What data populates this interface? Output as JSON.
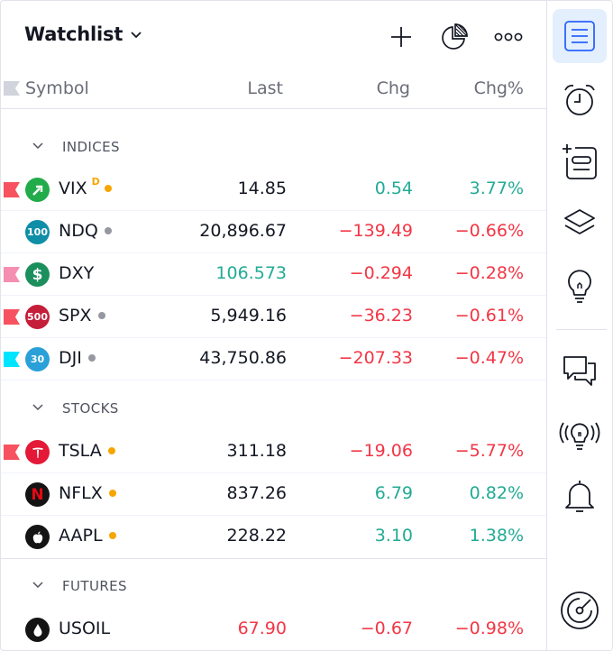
{
  "header": {
    "title": "Watchlist"
  },
  "columns": {
    "symbol": "Symbol",
    "last": "Last",
    "chg": "Chg",
    "chg_pct": "Chg%"
  },
  "sections": [
    {
      "label": "INDICES"
    },
    {
      "label": "STOCKS"
    },
    {
      "label": "FUTURES"
    }
  ],
  "rows": [
    {
      "symbol": "VIX",
      "superscript": "D",
      "last": "14.85",
      "chg": "0.54",
      "chg_pct": "3.77%",
      "last_color": "neutral",
      "chg_color": "positive",
      "flag_color": "#f7525f",
      "logo_text": "",
      "logo_color": "#22ab4a",
      "dot_color": "#f7a600"
    },
    {
      "symbol": "NDQ",
      "superscript": "",
      "last": "20,896.67",
      "chg": "−139.49",
      "chg_pct": "−0.66%",
      "last_color": "neutral",
      "chg_color": "negative",
      "flag_color": "",
      "logo_text": "100",
      "logo_color": "#0f8ea8",
      "dot_color": "#9598a1"
    },
    {
      "symbol": "DXY",
      "superscript": "",
      "last": "106.573",
      "chg": "−0.294",
      "chg_pct": "−0.28%",
      "last_color": "positive",
      "chg_color": "negative",
      "flag_color": "#f48fb1",
      "logo_text": "$",
      "logo_color": "#1b8f5c",
      "dot_color": ""
    },
    {
      "symbol": "SPX",
      "superscript": "",
      "last": "5,949.16",
      "chg": "−36.23",
      "chg_pct": "−0.61%",
      "last_color": "neutral",
      "chg_color": "negative",
      "flag_color": "#f7525f",
      "logo_text": "500",
      "logo_color": "#c41e3a",
      "dot_color": "#9598a1"
    },
    {
      "symbol": "DJI",
      "superscript": "",
      "last": "43,750.86",
      "chg": "−207.33",
      "chg_pct": "−0.47%",
      "last_color": "neutral",
      "chg_color": "negative",
      "flag_color": "#00e5ff",
      "logo_text": "30",
      "logo_color": "#2aa0d8",
      "dot_color": "#9598a1"
    },
    {
      "symbol": "TSLA",
      "superscript": "",
      "last": "311.18",
      "chg": "−19.06",
      "chg_pct": "−5.77%",
      "last_color": "neutral",
      "chg_color": "negative",
      "flag_color": "#f7525f",
      "logo_text": "",
      "logo_color": "#e31937",
      "dot_color": "#f7a600"
    },
    {
      "symbol": "NFLX",
      "superscript": "",
      "last": "837.26",
      "chg": "6.79",
      "chg_pct": "0.82%",
      "last_color": "neutral",
      "chg_color": "positive",
      "flag_color": "",
      "logo_text": "N",
      "logo_color": "#141414",
      "dot_color": "#f7a600"
    },
    {
      "symbol": "AAPL",
      "superscript": "",
      "last": "228.22",
      "chg": "3.10",
      "chg_pct": "1.38%",
      "last_color": "neutral",
      "chg_color": "positive",
      "flag_color": "",
      "logo_text": "",
      "logo_color": "#141414",
      "dot_color": "#f7a600"
    },
    {
      "symbol": "USOIL",
      "superscript": "",
      "last": "67.90",
      "chg": "−0.67",
      "chg_pct": "−0.98%",
      "last_color": "negative",
      "chg_color": "negative",
      "flag_color": "",
      "logo_text": "",
      "logo_color": "#141414",
      "dot_color": ""
    }
  ],
  "toolbar": {
    "items": [
      {
        "icon": "watchlist-icon",
        "active": true
      },
      {
        "icon": "alarm-clock-icon",
        "active": false
      },
      {
        "icon": "add-note-icon",
        "active": false
      },
      {
        "icon": "layers-icon",
        "active": false
      },
      {
        "icon": "lightbulb-icon",
        "active": false
      },
      {
        "icon": "chat-icon",
        "active": false
      },
      {
        "icon": "streams-icon",
        "active": false
      },
      {
        "icon": "bell-icon",
        "active": false
      },
      {
        "icon": "dom-target-icon",
        "active": false
      }
    ]
  },
  "colors": {
    "positive": "#22ab94",
    "negative": "#f23645",
    "neutral": "#131722",
    "accent": "#2962ff",
    "active_bg": "#e3effd",
    "orange": "#f7a600"
  }
}
